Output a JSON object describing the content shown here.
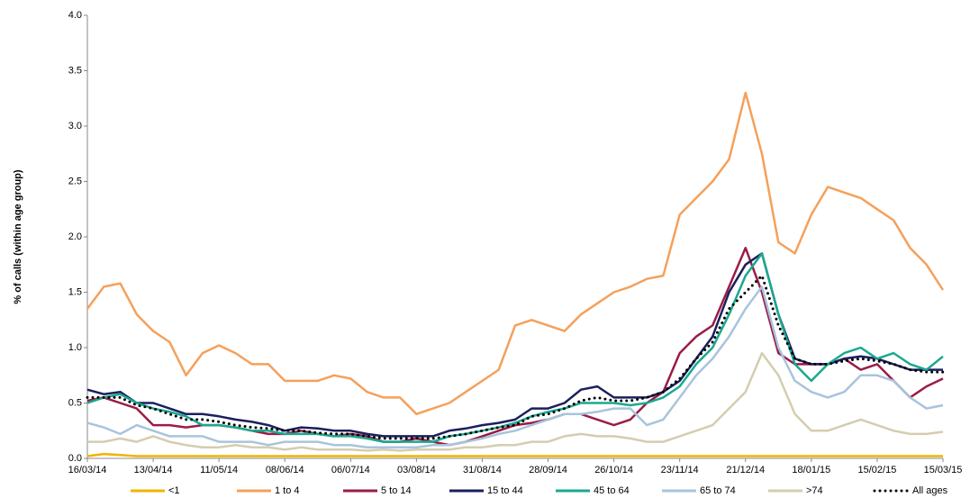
{
  "chart_data": {
    "type": "line",
    "y_label": "% of calls (within age group)",
    "x": [
      "16/03/14",
      "23/03/14",
      "30/03/14",
      "06/04/14",
      "13/04/14",
      "20/04/14",
      "27/04/14",
      "04/05/14",
      "11/05/14",
      "18/05/14",
      "25/05/14",
      "01/06/14",
      "08/06/14",
      "15/06/14",
      "22/06/14",
      "29/06/14",
      "06/07/14",
      "13/07/14",
      "20/07/14",
      "27/07/14",
      "03/08/14",
      "10/08/14",
      "17/08/14",
      "24/08/14",
      "31/08/14",
      "07/09/14",
      "14/09/14",
      "21/09/14",
      "28/09/14",
      "05/10/14",
      "12/10/14",
      "19/10/14",
      "26/10/14",
      "02/11/14",
      "09/11/14",
      "16/11/14",
      "23/11/14",
      "30/11/14",
      "07/12/14",
      "14/12/14",
      "21/12/14",
      "28/12/14",
      "04/01/15",
      "11/01/15",
      "18/01/15",
      "25/01/15",
      "01/02/15",
      "08/02/15",
      "15/02/15",
      "22/02/15",
      "01/03/15",
      "08/03/15",
      "15/03/15"
    ],
    "xticks": [
      "16/03/14",
      "13/04/14",
      "11/05/14",
      "08/06/14",
      "06/07/14",
      "03/08/14",
      "31/08/14",
      "28/09/14",
      "26/10/14",
      "23/11/14",
      "21/12/14",
      "18/01/15",
      "15/02/15",
      "15/03/15"
    ],
    "ylim": [
      0,
      4
    ],
    "yticks": [
      {
        "value": 0,
        "label": "0.0"
      },
      0.5,
      {
        "value": 1,
        "label": "1.0"
      },
      1.5,
      {
        "value": 2,
        "label": "2.0"
      },
      2.5,
      {
        "value": 3,
        "label": "3.0"
      },
      3.5,
      {
        "value": 4,
        "label": "4.0"
      }
    ],
    "grid": false,
    "legend": "bottom",
    "series": [
      {
        "name": "<1",
        "color": "#f0b400",
        "values": [
          0.02,
          0.04,
          0.03,
          0.02,
          0.02,
          0.02,
          0.02,
          0.02,
          0.02,
          0.02,
          0.02,
          0.02,
          0.02,
          0.02,
          0.02,
          0.02,
          0.02,
          0.02,
          0.02,
          0.02,
          0.02,
          0.02,
          0.02,
          0.02,
          0.02,
          0.02,
          0.02,
          0.02,
          0.02,
          0.02,
          0.02,
          0.02,
          0.02,
          0.02,
          0.02,
          0.02,
          0.02,
          0.02,
          0.02,
          0.02,
          0.02,
          0.02,
          0.02,
          0.02,
          0.02,
          0.02,
          0.02,
          0.02,
          0.02,
          0.02,
          0.02,
          0.02,
          0.02
        ]
      },
      {
        "name": "1 to 4",
        "color": "#f5a05a",
        "values": [
          1.35,
          1.55,
          1.58,
          1.3,
          1.15,
          1.05,
          0.75,
          0.95,
          1.02,
          0.95,
          0.85,
          0.85,
          0.7,
          0.7,
          0.7,
          0.75,
          0.72,
          0.6,
          0.55,
          0.55,
          0.4,
          0.45,
          0.5,
          0.6,
          0.7,
          0.8,
          1.2,
          1.25,
          1.2,
          1.15,
          1.3,
          1.4,
          1.5,
          1.55,
          1.62,
          1.65,
          2.2,
          2.35,
          2.5,
          2.7,
          3.3,
          2.75,
          1.95,
          1.85,
          2.2,
          2.45,
          2.4,
          2.35,
          2.25,
          2.15,
          1.9,
          1.75,
          1.52
        ]
      },
      {
        "name": "5 to 14",
        "color": "#9b1c46",
        "values": [
          0.52,
          0.55,
          0.5,
          0.45,
          0.3,
          0.3,
          0.28,
          0.3,
          0.3,
          0.28,
          0.25,
          0.22,
          0.22,
          0.25,
          0.22,
          0.2,
          0.22,
          0.2,
          0.15,
          0.15,
          0.18,
          0.15,
          0.12,
          0.15,
          0.2,
          0.25,
          0.3,
          0.32,
          0.35,
          0.4,
          0.4,
          0.35,
          0.3,
          0.35,
          0.5,
          0.6,
          0.95,
          1.1,
          1.2,
          1.55,
          1.9,
          1.5,
          0.95,
          0.85,
          0.85,
          0.85,
          0.9,
          0.8,
          0.85,
          0.7,
          0.55,
          0.65,
          0.72
        ]
      },
      {
        "name": "15 to 44",
        "color": "#1a1f5e",
        "values": [
          0.62,
          0.58,
          0.6,
          0.5,
          0.5,
          0.45,
          0.4,
          0.4,
          0.38,
          0.35,
          0.33,
          0.3,
          0.25,
          0.28,
          0.27,
          0.25,
          0.25,
          0.22,
          0.2,
          0.2,
          0.2,
          0.2,
          0.25,
          0.27,
          0.3,
          0.32,
          0.35,
          0.45,
          0.45,
          0.5,
          0.62,
          0.65,
          0.55,
          0.55,
          0.55,
          0.6,
          0.7,
          0.9,
          1.1,
          1.5,
          1.75,
          1.85,
          1.3,
          0.9,
          0.85,
          0.85,
          0.9,
          0.92,
          0.9,
          0.85,
          0.8,
          0.8,
          0.8
        ]
      },
      {
        "name": "45 to 64",
        "color": "#1aa98f",
        "values": [
          0.5,
          0.55,
          0.58,
          0.5,
          0.45,
          0.42,
          0.38,
          0.3,
          0.3,
          0.28,
          0.25,
          0.25,
          0.22,
          0.22,
          0.22,
          0.2,
          0.2,
          0.18,
          0.15,
          0.15,
          0.15,
          0.15,
          0.2,
          0.22,
          0.25,
          0.28,
          0.32,
          0.38,
          0.42,
          0.45,
          0.5,
          0.5,
          0.5,
          0.48,
          0.5,
          0.55,
          0.65,
          0.85,
          1.0,
          1.3,
          1.65,
          1.85,
          1.3,
          0.85,
          0.7,
          0.85,
          0.95,
          1.0,
          0.9,
          0.95,
          0.85,
          0.8,
          0.92
        ]
      },
      {
        "name": "65 to 74",
        "color": "#a8c4dc",
        "values": [
          0.32,
          0.28,
          0.22,
          0.3,
          0.25,
          0.2,
          0.2,
          0.2,
          0.15,
          0.15,
          0.15,
          0.12,
          0.15,
          0.15,
          0.15,
          0.12,
          0.12,
          0.1,
          0.1,
          0.1,
          0.1,
          0.12,
          0.12,
          0.15,
          0.18,
          0.22,
          0.25,
          0.3,
          0.35,
          0.4,
          0.4,
          0.42,
          0.45,
          0.45,
          0.3,
          0.35,
          0.55,
          0.75,
          0.9,
          1.1,
          1.35,
          1.55,
          1.0,
          0.7,
          0.6,
          0.55,
          0.6,
          0.75,
          0.75,
          0.7,
          0.55,
          0.45,
          0.48
        ]
      },
      {
        "name": ">74",
        "color": "#d4cdb0",
        "values": [
          0.15,
          0.15,
          0.18,
          0.15,
          0.2,
          0.15,
          0.12,
          0.1,
          0.1,
          0.12,
          0.1,
          0.1,
          0.08,
          0.1,
          0.08,
          0.08,
          0.08,
          0.07,
          0.08,
          0.07,
          0.08,
          0.08,
          0.08,
          0.1,
          0.1,
          0.12,
          0.12,
          0.15,
          0.15,
          0.2,
          0.22,
          0.2,
          0.2,
          0.18,
          0.15,
          0.15,
          0.2,
          0.25,
          0.3,
          0.45,
          0.6,
          0.95,
          0.75,
          0.4,
          0.25,
          0.25,
          0.3,
          0.35,
          0.3,
          0.25,
          0.22,
          0.22,
          0.24
        ]
      },
      {
        "name": "All ages",
        "color": "#000000",
        "dash": "dotted",
        "values": [
          0.55,
          0.55,
          0.55,
          0.48,
          0.45,
          0.4,
          0.35,
          0.35,
          0.33,
          0.3,
          0.28,
          0.27,
          0.25,
          0.25,
          0.23,
          0.22,
          0.22,
          0.2,
          0.18,
          0.18,
          0.18,
          0.18,
          0.2,
          0.22,
          0.25,
          0.28,
          0.3,
          0.38,
          0.4,
          0.45,
          0.52,
          0.55,
          0.52,
          0.52,
          0.55,
          0.6,
          0.72,
          0.9,
          1.05,
          1.35,
          1.5,
          1.65,
          1.2,
          0.9,
          0.85,
          0.85,
          0.88,
          0.9,
          0.88,
          0.85,
          0.8,
          0.78,
          0.78
        ]
      }
    ]
  }
}
